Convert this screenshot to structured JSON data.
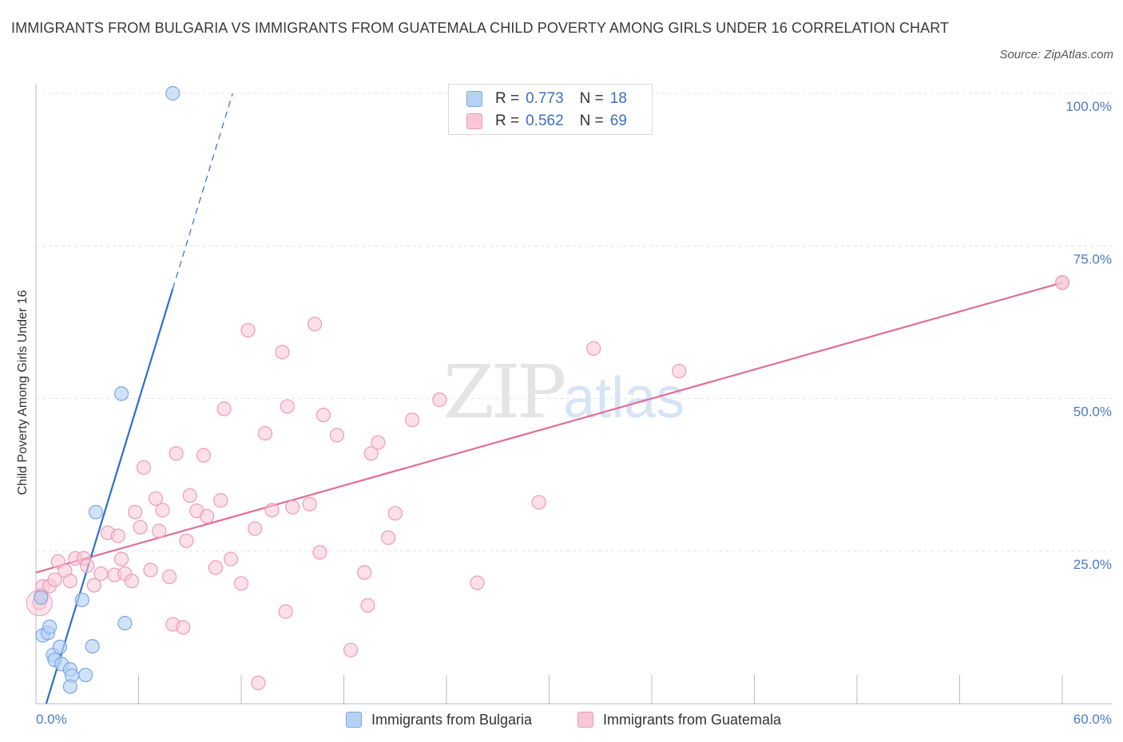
{
  "title": "IMMIGRANTS FROM BULGARIA VS IMMIGRANTS FROM GUATEMALA CHILD POVERTY AMONG GIRLS UNDER 16 CORRELATION CHART",
  "source": "Source: ZipAtlas.com",
  "watermark": {
    "zip": "ZIP",
    "atlas": "atlas"
  },
  "legend": {
    "bulgaria": {
      "r_label": "R =",
      "r": "0.773",
      "n_label": "N =",
      "n": "18"
    },
    "guatemala": {
      "r_label": "R =",
      "r": "0.562",
      "n_label": "N =",
      "n": "69"
    }
  },
  "bottom_legend": {
    "bulgaria": "Immigrants from Bulgaria",
    "guatemala": "Immigrants from Guatemala"
  },
  "colors": {
    "bulgaria_fill": "#b7d1f5",
    "bulgaria_stroke": "#7aa8e6",
    "bulgaria_line": "#2c6fcb",
    "guatemala_fill": "#f8c6d5",
    "guatemala_stroke": "#ee9bb5",
    "guatemala_line": "#e06d98",
    "tick_color": "#4a7cc8"
  },
  "chart_data": {
    "type": "scatter",
    "title": "IMMIGRANTS FROM BULGARIA VS IMMIGRANTS FROM GUATEMALA CHILD POVERTY AMONG GIRLS UNDER 16 CORRELATION CHART",
    "xlabel": "",
    "ylabel": "Child Poverty Among Girls Under 16",
    "xlim": [
      0,
      60
    ],
    "ylim": [
      0,
      100
    ],
    "x_tick_labels": [
      "0.0%",
      "60.0%"
    ],
    "y_tick_labels": [
      "25.0%",
      "50.0%",
      "75.0%",
      "100.0%"
    ],
    "y_ticks": [
      25,
      50,
      75,
      100
    ],
    "grid": true,
    "legend_position": "top-center",
    "series": [
      {
        "name": "Immigrants from Bulgaria",
        "R": 0.773,
        "N": 18,
        "points": [
          [
            0.3,
            17.4
          ],
          [
            0.4,
            11.2
          ],
          [
            0.7,
            11.6
          ],
          [
            0.8,
            12.6
          ],
          [
            1.0,
            8.0
          ],
          [
            1.1,
            7.2
          ],
          [
            1.4,
            9.3
          ],
          [
            1.5,
            6.5
          ],
          [
            2.0,
            5.6
          ],
          [
            2.1,
            4.6
          ],
          [
            2.0,
            2.8
          ],
          [
            2.7,
            17.0
          ],
          [
            2.9,
            4.7
          ],
          [
            3.3,
            9.4
          ],
          [
            3.5,
            31.4
          ],
          [
            5.0,
            50.8
          ],
          [
            5.2,
            13.2
          ],
          [
            8.0,
            100.0
          ]
        ],
        "trend": {
          "x1": 0.6,
          "y1": 0,
          "x2": 8.0,
          "y2": 68,
          "dashed_to": [
            11.5,
            100
          ]
        }
      },
      {
        "name": "Immigrants from Guatemala",
        "R": 0.562,
        "N": 69,
        "points": [
          [
            0.2,
            16.5
          ],
          [
            0.3,
            17.8
          ],
          [
            0.4,
            19.2
          ],
          [
            0.8,
            19.3
          ],
          [
            1.1,
            20.3
          ],
          [
            1.3,
            23.3
          ],
          [
            1.7,
            21.8
          ],
          [
            2.0,
            20.1
          ],
          [
            2.3,
            23.8
          ],
          [
            2.8,
            23.8
          ],
          [
            3.0,
            22.6
          ],
          [
            3.4,
            19.4
          ],
          [
            3.8,
            21.3
          ],
          [
            4.2,
            28.0
          ],
          [
            4.6,
            21.1
          ],
          [
            4.8,
            27.5
          ],
          [
            5.0,
            23.7
          ],
          [
            5.2,
            21.3
          ],
          [
            5.6,
            20.1
          ],
          [
            5.8,
            31.4
          ],
          [
            6.1,
            28.9
          ],
          [
            6.3,
            38.7
          ],
          [
            6.7,
            21.9
          ],
          [
            7.0,
            33.6
          ],
          [
            7.2,
            28.3
          ],
          [
            7.4,
            31.7
          ],
          [
            7.8,
            20.8
          ],
          [
            8.0,
            13.0
          ],
          [
            8.2,
            41.0
          ],
          [
            8.6,
            12.5
          ],
          [
            8.8,
            26.7
          ],
          [
            9.0,
            34.1
          ],
          [
            9.4,
            31.6
          ],
          [
            9.8,
            40.7
          ],
          [
            10.0,
            30.7
          ],
          [
            10.5,
            22.3
          ],
          [
            10.8,
            33.3
          ],
          [
            11.0,
            48.3
          ],
          [
            11.4,
            23.7
          ],
          [
            12.0,
            19.7
          ],
          [
            12.4,
            61.2
          ],
          [
            12.8,
            28.7
          ],
          [
            13.0,
            3.4
          ],
          [
            13.4,
            44.3
          ],
          [
            13.8,
            31.7
          ],
          [
            14.4,
            57.6
          ],
          [
            14.6,
            15.1
          ],
          [
            14.7,
            48.7
          ],
          [
            15.0,
            32.2
          ],
          [
            16.0,
            32.7
          ],
          [
            16.3,
            62.2
          ],
          [
            16.6,
            24.8
          ],
          [
            16.8,
            47.3
          ],
          [
            17.6,
            44.0
          ],
          [
            18.4,
            8.8
          ],
          [
            19.2,
            21.5
          ],
          [
            19.4,
            16.1
          ],
          [
            19.6,
            41.0
          ],
          [
            20.0,
            42.8
          ],
          [
            20.6,
            27.2
          ],
          [
            21.0,
            31.2
          ],
          [
            22.0,
            46.5
          ],
          [
            23.6,
            49.8
          ],
          [
            25.8,
            19.8
          ],
          [
            29.4,
            33.0
          ],
          [
            32.6,
            58.2
          ],
          [
            37.6,
            54.5
          ],
          [
            60.0,
            69.0
          ],
          [
            60.0,
            69.0
          ]
        ],
        "trend": {
          "x1": 0,
          "y1": 21.5,
          "x2": 60,
          "y2": 69
        }
      }
    ]
  }
}
